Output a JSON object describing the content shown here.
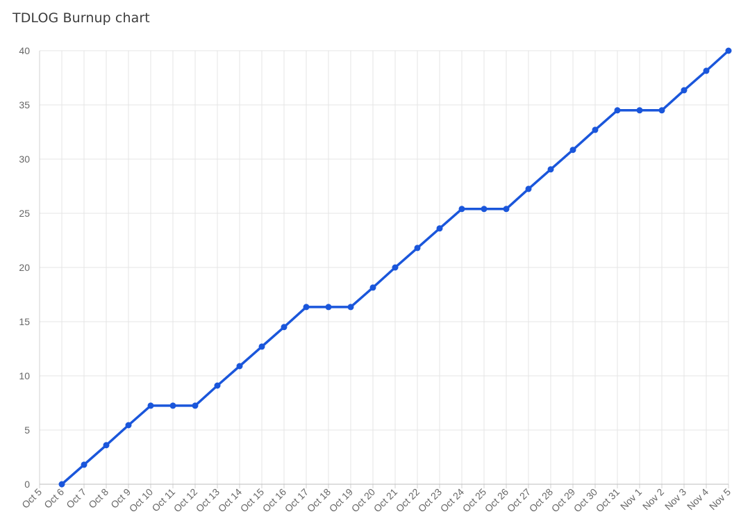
{
  "chart_data": {
    "type": "line",
    "title": "TDLOG Burnup chart",
    "xlabel": "",
    "ylabel": "",
    "categories": [
      "Oct 5",
      "Oct 6",
      "Oct 7",
      "Oct 8",
      "Oct 9",
      "Oct 10",
      "Oct 11",
      "Oct 12",
      "Oct 13",
      "Oct 14",
      "Oct 15",
      "Oct 16",
      "Oct 17",
      "Oct 18",
      "Oct 19",
      "Oct 20",
      "Oct 21",
      "Oct 22",
      "Oct 23",
      "Oct 24",
      "Oct 25",
      "Oct 26",
      "Oct 27",
      "Oct 28",
      "Oct 29",
      "Oct 30",
      "Oct 31",
      "Nov 1",
      "Nov 2",
      "Nov 3",
      "Nov 4",
      "Nov 5"
    ],
    "series": [
      {
        "values": [
          null,
          0,
          1.8,
          3.6,
          5.45,
          7.25,
          7.25,
          7.25,
          9.1,
          10.9,
          12.7,
          14.5,
          16.35,
          16.35,
          16.35,
          18.15,
          20,
          21.8,
          23.6,
          25.4,
          25.4,
          25.4,
          27.25,
          29.05,
          30.85,
          32.7,
          34.5,
          34.5,
          34.5,
          36.35,
          38.15,
          40
        ],
        "color": "#1a56db"
      }
    ],
    "ylim": [
      0,
      40
    ],
    "yticks": [
      0,
      5,
      10,
      15,
      20,
      25,
      30,
      35,
      40
    ],
    "grid": true,
    "legend": "none"
  }
}
